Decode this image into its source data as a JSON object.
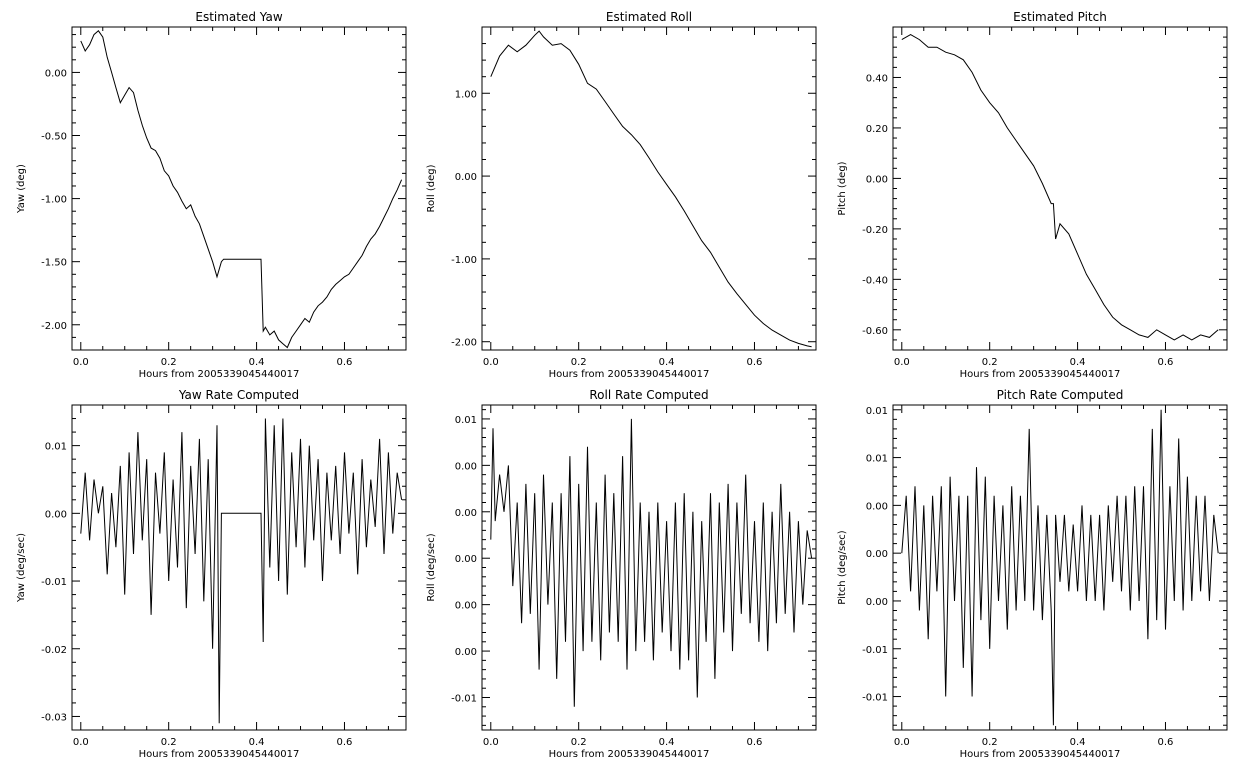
{
  "figure": {
    "xlabel": "Hours from 2005339045440017"
  },
  "chart_data": [
    {
      "type": "line",
      "title": "Estimated Yaw",
      "xlabel": "Hours from 2005339045440017",
      "ylabel": "Yaw (deg)",
      "xlim": [
        -0.02,
        0.74
      ],
      "ylim": [
        -2.2,
        0.36
      ],
      "xticks": [
        0.0,
        0.2,
        0.4,
        0.6
      ],
      "xtick_labels": [
        "0.0",
        "0.2",
        "0.4",
        "0.6"
      ],
      "yticks": [
        0.0,
        -0.5,
        -1.0,
        -1.5,
        -2.0
      ],
      "ytick_labels": [
        "0.00",
        "-0.50",
        "-1.00",
        "-1.50",
        "-2.00"
      ],
      "grid": false,
      "series": [
        {
          "x": [
            0.0,
            0.01,
            0.02,
            0.03,
            0.04,
            0.05,
            0.06,
            0.07,
            0.08,
            0.09,
            0.1,
            0.11,
            0.12,
            0.13,
            0.14,
            0.15,
            0.16,
            0.17,
            0.18,
            0.19,
            0.2,
            0.21,
            0.22,
            0.23,
            0.24,
            0.25,
            0.26,
            0.27,
            0.28,
            0.29,
            0.3,
            0.31,
            0.32,
            0.325,
            0.35,
            0.38,
            0.41,
            0.415,
            0.42,
            0.43,
            0.44,
            0.45,
            0.46,
            0.47,
            0.48,
            0.49,
            0.5,
            0.51,
            0.52,
            0.53,
            0.54,
            0.55,
            0.56,
            0.57,
            0.58,
            0.59,
            0.6,
            0.61,
            0.62,
            0.63,
            0.64,
            0.65,
            0.66,
            0.67,
            0.68,
            0.69,
            0.7,
            0.71,
            0.72,
            0.73
          ],
          "y": [
            0.25,
            0.17,
            0.22,
            0.3,
            0.33,
            0.28,
            0.12,
            0.0,
            -0.12,
            -0.24,
            -0.18,
            -0.12,
            -0.16,
            -0.3,
            -0.42,
            -0.52,
            -0.6,
            -0.62,
            -0.68,
            -0.78,
            -0.82,
            -0.9,
            -0.95,
            -1.02,
            -1.08,
            -1.05,
            -1.14,
            -1.2,
            -1.3,
            -1.4,
            -1.5,
            -1.62,
            -1.5,
            -1.48,
            -1.48,
            -1.48,
            -1.48,
            -2.05,
            -2.02,
            -2.08,
            -2.05,
            -2.12,
            -2.15,
            -2.18,
            -2.1,
            -2.05,
            -2.0,
            -1.95,
            -1.98,
            -1.9,
            -1.85,
            -1.82,
            -1.78,
            -1.72,
            -1.68,
            -1.65,
            -1.62,
            -1.6,
            -1.55,
            -1.5,
            -1.45,
            -1.38,
            -1.32,
            -1.28,
            -1.22,
            -1.15,
            -1.08,
            -1.0,
            -0.93,
            -0.85
          ]
        }
      ]
    },
    {
      "type": "line",
      "title": "Estimated Roll",
      "xlabel": "Hours from 2005339045440017",
      "ylabel": "Roll (deg)",
      "xlim": [
        -0.02,
        0.74
      ],
      "ylim": [
        -2.1,
        1.8
      ],
      "xticks": [
        0.0,
        0.2,
        0.4,
        0.6
      ],
      "xtick_labels": [
        "0.0",
        "0.2",
        "0.4",
        "0.6"
      ],
      "yticks": [
        1.0,
        0.0,
        -1.0,
        -2.0
      ],
      "ytick_labels": [
        "1.00",
        "0.00",
        "-1.00",
        "-2.00"
      ],
      "grid": false,
      "series": [
        {
          "x": [
            0.0,
            0.02,
            0.04,
            0.06,
            0.08,
            0.1,
            0.11,
            0.12,
            0.14,
            0.16,
            0.18,
            0.2,
            0.22,
            0.24,
            0.26,
            0.28,
            0.3,
            0.32,
            0.34,
            0.36,
            0.38,
            0.4,
            0.42,
            0.44,
            0.46,
            0.48,
            0.5,
            0.52,
            0.54,
            0.56,
            0.58,
            0.6,
            0.62,
            0.64,
            0.66,
            0.68,
            0.7,
            0.72,
            0.73
          ],
          "y": [
            1.2,
            1.45,
            1.58,
            1.5,
            1.58,
            1.7,
            1.75,
            1.68,
            1.58,
            1.6,
            1.52,
            1.35,
            1.12,
            1.05,
            0.9,
            0.75,
            0.6,
            0.5,
            0.38,
            0.22,
            0.05,
            -0.1,
            -0.25,
            -0.42,
            -0.6,
            -0.78,
            -0.92,
            -1.1,
            -1.28,
            -1.42,
            -1.55,
            -1.68,
            -1.78,
            -1.86,
            -1.92,
            -1.98,
            -2.02,
            -2.05,
            -2.06
          ]
        }
      ]
    },
    {
      "type": "line",
      "title": "Estimated Pitch",
      "xlabel": "Hours from 2005339045440017",
      "ylabel": "Pitch (deg)",
      "xlim": [
        -0.02,
        0.74
      ],
      "ylim": [
        -0.68,
        0.6
      ],
      "xticks": [
        0.0,
        0.2,
        0.4,
        0.6
      ],
      "xtick_labels": [
        "0.0",
        "0.2",
        "0.4",
        "0.6"
      ],
      "yticks": [
        0.4,
        0.2,
        0.0,
        -0.2,
        -0.4,
        -0.6
      ],
      "ytick_labels": [
        "0.40",
        "0.20",
        "0.00",
        "-0.20",
        "-0.40",
        "-0.60"
      ],
      "grid": false,
      "series": [
        {
          "x": [
            0.0,
            0.02,
            0.04,
            0.06,
            0.08,
            0.1,
            0.12,
            0.14,
            0.16,
            0.18,
            0.2,
            0.22,
            0.24,
            0.26,
            0.28,
            0.3,
            0.32,
            0.34,
            0.345,
            0.35,
            0.36,
            0.38,
            0.4,
            0.42,
            0.44,
            0.46,
            0.48,
            0.5,
            0.52,
            0.54,
            0.56,
            0.58,
            0.6,
            0.62,
            0.64,
            0.66,
            0.68,
            0.7,
            0.72
          ],
          "y": [
            0.55,
            0.57,
            0.55,
            0.52,
            0.52,
            0.5,
            0.49,
            0.47,
            0.42,
            0.35,
            0.3,
            0.26,
            0.2,
            0.15,
            0.1,
            0.05,
            -0.02,
            -0.1,
            -0.1,
            -0.24,
            -0.18,
            -0.22,
            -0.3,
            -0.38,
            -0.44,
            -0.5,
            -0.55,
            -0.58,
            -0.6,
            -0.62,
            -0.63,
            -0.6,
            -0.62,
            -0.64,
            -0.62,
            -0.64,
            -0.62,
            -0.63,
            -0.6
          ]
        }
      ]
    },
    {
      "type": "line",
      "title": "Yaw Rate Computed",
      "xlabel": "Hours from 2005339045440017",
      "ylabel": "Yaw (deg/sec)",
      "xlim": [
        -0.02,
        0.74
      ],
      "ylim": [
        -0.032,
        0.016
      ],
      "xticks": [
        0.0,
        0.2,
        0.4,
        0.6
      ],
      "xtick_labels": [
        "0.0",
        "0.2",
        "0.4",
        "0.6"
      ],
      "yticks": [
        0.01,
        0.0,
        -0.01,
        -0.02,
        -0.03
      ],
      "ytick_labels": [
        "0.01",
        "0.00",
        "-0.01",
        "-0.02",
        "-0.03"
      ],
      "grid": false,
      "series": [
        {
          "x": [
            0.0,
            0.01,
            0.02,
            0.03,
            0.04,
            0.05,
            0.06,
            0.07,
            0.08,
            0.09,
            0.1,
            0.11,
            0.12,
            0.13,
            0.14,
            0.15,
            0.16,
            0.17,
            0.18,
            0.19,
            0.2,
            0.21,
            0.22,
            0.23,
            0.24,
            0.25,
            0.26,
            0.27,
            0.28,
            0.29,
            0.3,
            0.31,
            0.315,
            0.32,
            0.325,
            0.33,
            0.41,
            0.415,
            0.42,
            0.43,
            0.44,
            0.45,
            0.46,
            0.47,
            0.48,
            0.49,
            0.5,
            0.51,
            0.52,
            0.53,
            0.54,
            0.55,
            0.56,
            0.57,
            0.58,
            0.59,
            0.6,
            0.61,
            0.62,
            0.63,
            0.64,
            0.65,
            0.66,
            0.67,
            0.68,
            0.69,
            0.7,
            0.71,
            0.72,
            0.73
          ],
          "y": [
            -0.003,
            0.006,
            -0.004,
            0.005,
            0.0,
            0.004,
            -0.009,
            0.003,
            -0.005,
            0.007,
            -0.012,
            0.009,
            -0.006,
            0.012,
            -0.004,
            0.008,
            -0.015,
            0.006,
            -0.003,
            0.009,
            -0.01,
            0.005,
            -0.008,
            0.012,
            -0.014,
            0.007,
            -0.006,
            0.011,
            -0.013,
            0.008,
            -0.02,
            0.013,
            -0.031,
            0.0,
            0.0,
            0.0,
            0.0,
            -0.019,
            0.014,
            -0.008,
            0.013,
            -0.01,
            0.014,
            -0.012,
            0.009,
            -0.005,
            0.011,
            -0.008,
            0.01,
            -0.004,
            0.008,
            -0.01,
            0.006,
            -0.004,
            0.007,
            -0.006,
            0.009,
            -0.003,
            0.006,
            -0.009,
            0.008,
            -0.005,
            0.005,
            -0.002,
            0.011,
            -0.006,
            0.009,
            -0.003,
            0.006,
            0.002
          ]
        }
      ]
    },
    {
      "type": "line",
      "title": "Roll Rate Computed",
      "xlabel": "Hours from 2005339045440017",
      "ylabel": "Roll (deg/sec)",
      "xlim": [
        -0.02,
        0.74
      ],
      "ylim": [
        -0.0185,
        0.0165
      ],
      "xticks": [
        0.0,
        0.2,
        0.4,
        0.6
      ],
      "xtick_labels": [
        "0.0",
        "0.2",
        "0.4",
        "0.6"
      ],
      "yticks": [
        0.015,
        0.01,
        0.005,
        0.0,
        -0.005,
        -0.01,
        -0.015
      ],
      "ytick_labels": [
        "0.01",
        "0.00",
        "0.00",
        "0.00",
        "0.00",
        "0.00",
        "-0.01"
      ],
      "grid": false,
      "series": [
        {
          "x": [
            0.0,
            0.005,
            0.01,
            0.02,
            0.03,
            0.04,
            0.05,
            0.06,
            0.07,
            0.08,
            0.09,
            0.1,
            0.11,
            0.12,
            0.13,
            0.14,
            0.15,
            0.16,
            0.17,
            0.18,
            0.19,
            0.2,
            0.21,
            0.22,
            0.23,
            0.24,
            0.25,
            0.26,
            0.27,
            0.28,
            0.29,
            0.3,
            0.31,
            0.32,
            0.33,
            0.34,
            0.35,
            0.36,
            0.37,
            0.38,
            0.39,
            0.4,
            0.41,
            0.42,
            0.43,
            0.44,
            0.45,
            0.46,
            0.47,
            0.48,
            0.49,
            0.5,
            0.51,
            0.52,
            0.53,
            0.54,
            0.55,
            0.56,
            0.57,
            0.58,
            0.59,
            0.6,
            0.61,
            0.62,
            0.63,
            0.64,
            0.65,
            0.66,
            0.67,
            0.68,
            0.69,
            0.7,
            0.71,
            0.72,
            0.73
          ],
          "y": [
            0.002,
            0.014,
            0.004,
            0.009,
            0.005,
            0.01,
            -0.003,
            0.006,
            -0.007,
            0.008,
            -0.006,
            0.007,
            -0.012,
            0.009,
            -0.005,
            0.006,
            -0.013,
            0.007,
            -0.009,
            0.011,
            -0.016,
            0.008,
            -0.01,
            0.012,
            -0.009,
            0.006,
            -0.011,
            0.009,
            -0.008,
            0.007,
            -0.009,
            0.011,
            -0.012,
            0.015,
            -0.01,
            0.006,
            -0.009,
            0.005,
            -0.011,
            0.006,
            -0.008,
            0.004,
            -0.01,
            0.006,
            -0.012,
            0.007,
            -0.011,
            0.005,
            -0.015,
            0.004,
            -0.009,
            0.007,
            -0.013,
            0.006,
            -0.008,
            0.008,
            -0.01,
            0.006,
            -0.006,
            0.009,
            -0.007,
            0.004,
            -0.009,
            0.006,
            -0.01,
            0.005,
            -0.007,
            0.008,
            -0.006,
            0.005,
            -0.008,
            0.004,
            -0.005,
            0.003,
            0.0
          ]
        }
      ]
    },
    {
      "type": "line",
      "title": "Pitch Rate Computed",
      "xlabel": "Hours from 2005339045440017",
      "ylabel": "Pitch (deg/sec)",
      "xlim": [
        -0.02,
        0.74
      ],
      "ylim": [
        -0.0185,
        0.0155
      ],
      "xticks": [
        0.0,
        0.2,
        0.4,
        0.6
      ],
      "xtick_labels": [
        "0.0",
        "0.2",
        "0.4",
        "0.6"
      ],
      "yticks": [
        0.015,
        0.01,
        0.005,
        0.0,
        -0.005,
        -0.01,
        -0.015
      ],
      "ytick_labels": [
        "0.01",
        "0.01",
        "0.00",
        "0.00",
        "0.00",
        "-0.01",
        "-0.01"
      ],
      "grid": false,
      "series": [
        {
          "x": [
            0.0,
            0.01,
            0.02,
            0.03,
            0.04,
            0.05,
            0.06,
            0.07,
            0.08,
            0.09,
            0.1,
            0.11,
            0.12,
            0.13,
            0.14,
            0.15,
            0.16,
            0.17,
            0.18,
            0.19,
            0.2,
            0.21,
            0.22,
            0.23,
            0.24,
            0.25,
            0.26,
            0.27,
            0.28,
            0.29,
            0.3,
            0.31,
            0.32,
            0.33,
            0.34,
            0.345,
            0.35,
            0.36,
            0.37,
            0.38,
            0.39,
            0.4,
            0.41,
            0.42,
            0.43,
            0.44,
            0.45,
            0.46,
            0.47,
            0.48,
            0.49,
            0.5,
            0.51,
            0.52,
            0.53,
            0.54,
            0.55,
            0.56,
            0.57,
            0.58,
            0.59,
            0.6,
            0.61,
            0.62,
            0.63,
            0.64,
            0.65,
            0.66,
            0.67,
            0.68,
            0.69,
            0.7,
            0.71,
            0.72
          ],
          "y": [
            0.0,
            0.006,
            -0.004,
            0.007,
            -0.006,
            0.005,
            -0.009,
            0.006,
            -0.004,
            0.007,
            -0.015,
            0.008,
            -0.005,
            0.006,
            -0.012,
            0.006,
            -0.015,
            0.009,
            -0.007,
            0.008,
            -0.01,
            0.006,
            -0.005,
            0.005,
            -0.008,
            0.007,
            -0.006,
            0.006,
            -0.005,
            0.013,
            -0.006,
            0.005,
            -0.007,
            0.004,
            -0.006,
            -0.018,
            0.004,
            -0.003,
            0.004,
            -0.004,
            0.003,
            -0.004,
            0.005,
            -0.005,
            0.004,
            -0.005,
            0.004,
            -0.006,
            0.005,
            -0.003,
            0.006,
            -0.004,
            0.006,
            -0.006,
            0.007,
            -0.005,
            0.007,
            -0.009,
            0.013,
            -0.007,
            0.015,
            -0.008,
            0.007,
            -0.005,
            0.012,
            -0.006,
            0.008,
            -0.005,
            0.006,
            -0.004,
            0.006,
            -0.005,
            0.004,
            0.0
          ]
        }
      ]
    }
  ]
}
